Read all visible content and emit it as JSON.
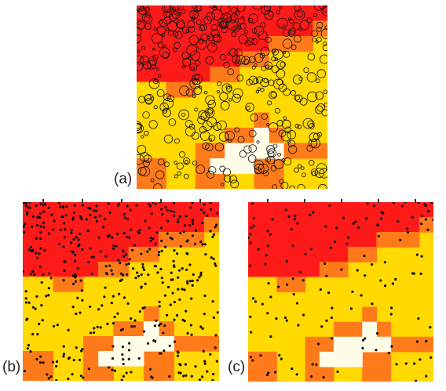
{
  "figure": {
    "panels": [
      {
        "id": "a",
        "label": "(a)",
        "marker": "open-circle"
      },
      {
        "id": "b",
        "label": "(b)",
        "marker": "dot"
      },
      {
        "id": "c",
        "label": "(c)",
        "marker": "dot"
      }
    ],
    "colors": {
      "red": "#ff1a1a",
      "orange": "#ff7b1a",
      "yellow": "#ffd900",
      "cream": "#fffce8",
      "marker": "#111111"
    }
  }
}
